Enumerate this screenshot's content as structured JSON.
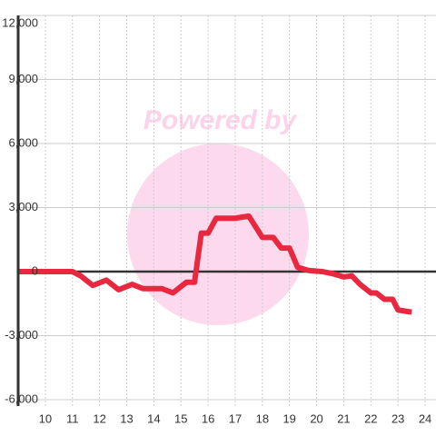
{
  "chart_data": {
    "type": "line",
    "watermark": "Powered by",
    "x": [
      9,
      11,
      11.3,
      11.75,
      12.25,
      12.7,
      13.2,
      13.6,
      14.3,
      14.7,
      15.2,
      15.5,
      15.75,
      16.0,
      16.3,
      17.0,
      17.5,
      18.0,
      18.4,
      18.7,
      19.0,
      19.3,
      19.7,
      20.2,
      20.6,
      21.0,
      21.3,
      21.6,
      22.0,
      22.2,
      22.5,
      22.8,
      23.0,
      23.5
    ],
    "series": [
      {
        "color": "#e8283f",
        "values": [
          0,
          0,
          -200,
          -650,
          -400,
          -850,
          -600,
          -800,
          -800,
          -1000,
          -500,
          -500,
          1800,
          1800,
          2500,
          2500,
          2600,
          1600,
          1600,
          1100,
          1100,
          200,
          50,
          0,
          -100,
          -250,
          -200,
          -600,
          -1000,
          -1000,
          -1300,
          -1300,
          -1800,
          -1900
        ]
      }
    ],
    "xlim": [
      9,
      24.4
    ],
    "xticks": [
      10,
      11,
      12,
      13,
      14,
      15,
      16,
      17,
      18,
      19,
      20,
      21,
      22,
      23,
      24
    ],
    "ylim": [
      -6300,
      12000
    ],
    "yticks": [
      {
        "value": -6000,
        "label": "-6,000"
      },
      {
        "value": -3000,
        "label": "-3,000"
      },
      0,
      {
        "value": 3000,
        "label": "3,000"
      },
      {
        "value": 6000,
        "label": "6,000"
      },
      {
        "value": 9000,
        "label": "9,000"
      },
      {
        "value": 12000,
        "label": "12,000"
      }
    ],
    "grid": true
  }
}
